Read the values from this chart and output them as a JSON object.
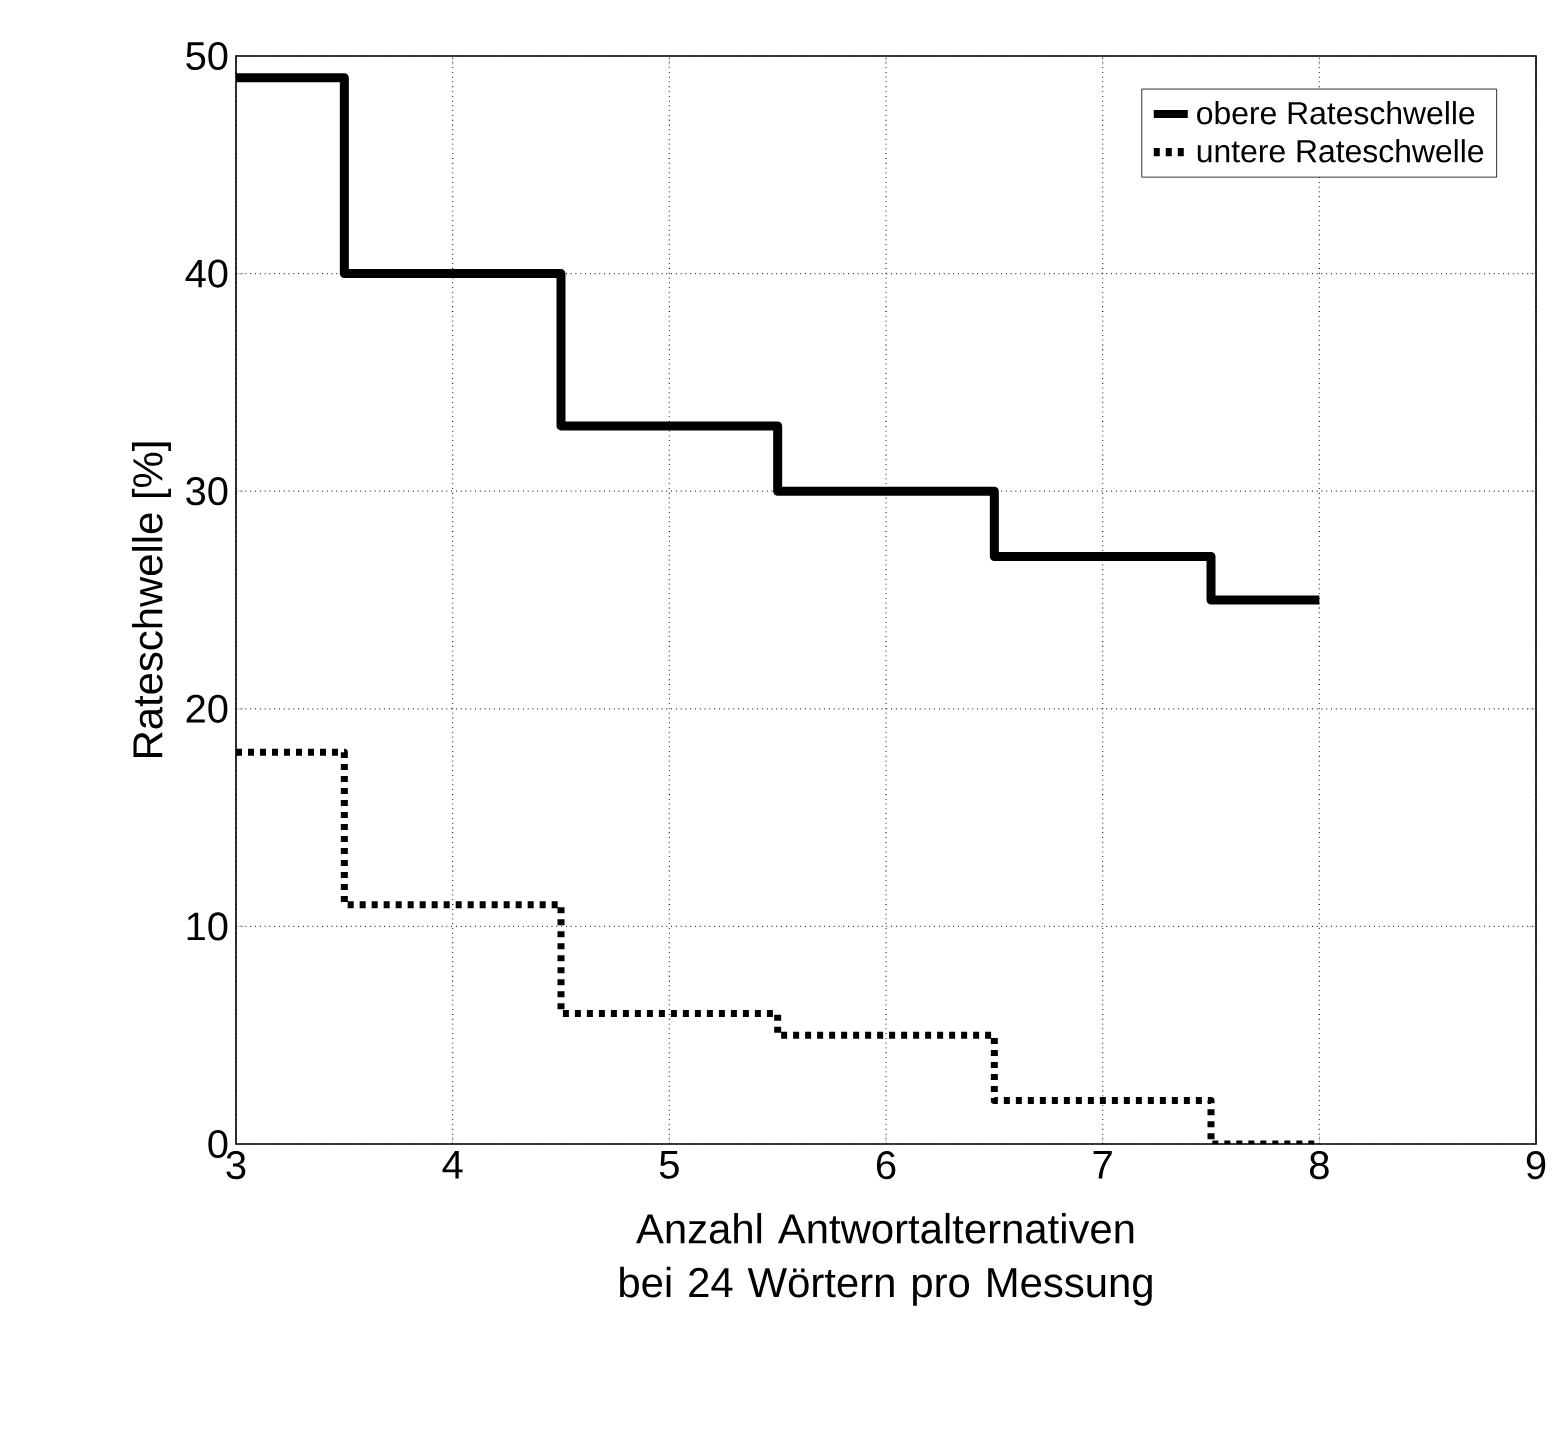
{
  "chart_data": {
    "type": "step",
    "xlabel": "Anzahl Antwortalternativen bei 24 Wörtern pro Messung",
    "ylabel": "Rateschwelle [%]",
    "x": [
      3,
      4,
      5,
      6,
      7,
      8
    ],
    "series": [
      {
        "name": "obere Rateschwelle",
        "color": "#000000",
        "line_style": "solid",
        "values": [
          49,
          40,
          33,
          30,
          27,
          25
        ]
      },
      {
        "name": "untere Rateschwelle",
        "color": "#000000",
        "line_style": "dotted",
        "values": [
          18,
          11,
          6,
          5,
          2,
          0
        ]
      }
    ],
    "xlim": [
      3,
      9
    ],
    "ylim": [
      0,
      50
    ],
    "xticks": [
      3,
      4,
      5,
      6,
      7,
      8,
      9
    ],
    "yticks": [
      0,
      10,
      20,
      30,
      40,
      50
    ],
    "grid": true,
    "legend": "top right"
  }
}
